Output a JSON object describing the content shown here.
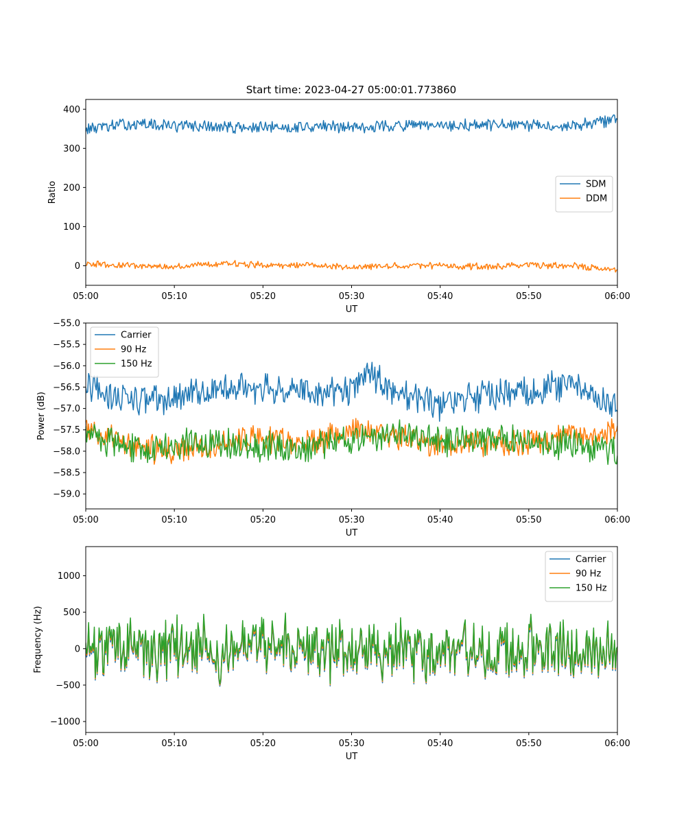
{
  "figure": {
    "title": "Start time: 2023-04-27 05:00:01.773860"
  },
  "colors": {
    "series1": "#1f77b4",
    "series2": "#ff7f0e",
    "series3": "#2ca02c",
    "legend_border": "#cccccc"
  },
  "chart_data": [
    {
      "type": "line",
      "title": "Start time: 2023-04-27 05:00:01.773860",
      "xlabel": "UT",
      "ylabel": "Ratio",
      "xlim": [
        "05:00",
        "06:00"
      ],
      "xticks": [
        "05:00",
        "05:10",
        "05:20",
        "05:30",
        "05:40",
        "05:50",
        "06:00"
      ],
      "ylim": [
        -50,
        425
      ],
      "yticks": [
        0,
        100,
        200,
        300,
        400
      ],
      "grid": false,
      "legend": "center-right",
      "series": [
        {
          "name": "SDM",
          "color": "#1f77b4",
          "x": [
            "05:00",
            "05:05",
            "05:10",
            "05:15",
            "05:20",
            "05:25",
            "05:30",
            "05:35",
            "05:40",
            "05:45",
            "05:50",
            "05:55",
            "06:00"
          ],
          "y": [
            350,
            362,
            358,
            355,
            352,
            356,
            355,
            358,
            356,
            360,
            357,
            358,
            375
          ],
          "noise": 15
        },
        {
          "name": "DDM",
          "color": "#ff7f0e",
          "x": [
            "05:00",
            "05:05",
            "05:10",
            "05:15",
            "05:20",
            "05:25",
            "05:30",
            "05:35",
            "05:40",
            "05:45",
            "05:50",
            "05:55",
            "06:00"
          ],
          "y": [
            5,
            0,
            -2,
            5,
            2,
            1,
            -3,
            0,
            0,
            -2,
            0,
            0,
            -12
          ],
          "noise": 8
        }
      ]
    },
    {
      "type": "line",
      "xlabel": "UT",
      "ylabel": "Power (dB)",
      "xlim": [
        "05:00",
        "06:00"
      ],
      "xticks": [
        "05:00",
        "05:10",
        "05:20",
        "05:30",
        "05:40",
        "05:50",
        "06:00"
      ],
      "ylim": [
        -59.35,
        -55.0
      ],
      "yticks": [
        -55.0,
        -55.5,
        -56.0,
        -56.5,
        -57.0,
        -57.5,
        -58.0,
        -58.5,
        -59.0
      ],
      "yticklabels": [
        "−55.0",
        "−55.5",
        "−56.0",
        "−56.5",
        "−57.0",
        "−57.5",
        "−58.0",
        "−58.5",
        "−59.0"
      ],
      "grid": false,
      "legend": "upper-left",
      "series": [
        {
          "name": "Carrier",
          "color": "#1f77b4",
          "x": [
            "05:00",
            "05:05",
            "05:10",
            "05:15",
            "05:20",
            "05:25",
            "05:30",
            "05:32",
            "05:35",
            "05:40",
            "05:45",
            "05:50",
            "05:55",
            "06:00"
          ],
          "y": [
            -56.5,
            -56.8,
            -56.8,
            -56.5,
            -56.5,
            -56.6,
            -56.6,
            -56.1,
            -56.7,
            -56.9,
            -56.7,
            -56.6,
            -56.4,
            -57.05
          ],
          "noise": 0.35
        },
        {
          "name": "90 Hz",
          "color": "#ff7f0e",
          "x": [
            "05:00",
            "05:05",
            "05:10",
            "05:15",
            "05:20",
            "05:25",
            "05:30",
            "05:35",
            "05:40",
            "05:45",
            "05:50",
            "05:55",
            "06:00"
          ],
          "y": [
            -57.5,
            -57.9,
            -58.0,
            -57.8,
            -57.7,
            -57.8,
            -57.5,
            -57.6,
            -57.9,
            -57.8,
            -57.8,
            -57.6,
            -57.5
          ],
          "noise": 0.3
        },
        {
          "name": "150 Hz",
          "color": "#2ca02c",
          "x": [
            "05:00",
            "05:05",
            "05:10",
            "05:15",
            "05:20",
            "05:25",
            "05:30",
            "05:35",
            "05:40",
            "05:45",
            "05:50",
            "05:55",
            "06:00"
          ],
          "y": [
            -57.6,
            -57.9,
            -57.9,
            -57.8,
            -57.9,
            -57.9,
            -57.7,
            -57.6,
            -57.8,
            -57.7,
            -57.8,
            -57.8,
            -58.0
          ],
          "noise": 0.35
        }
      ]
    },
    {
      "type": "line",
      "xlabel": "UT",
      "ylabel": "Frequency (Hz)",
      "xlim": [
        "05:00",
        "06:00"
      ],
      "xticks": [
        "05:00",
        "05:10",
        "05:20",
        "05:30",
        "05:40",
        "05:50",
        "06:00"
      ],
      "ylim": [
        -1150,
        1400
      ],
      "yticks": [
        -1000,
        -500,
        0,
        500,
        1000
      ],
      "yticklabels": [
        "−1000",
        "−500",
        "0",
        "500",
        "1000"
      ],
      "grid": false,
      "legend": "upper-right",
      "series": [
        {
          "name": "Carrier",
          "color": "#1f77b4",
          "x": [
            "05:00",
            "05:30",
            "06:00"
          ],
          "y": [
            -50,
            -50,
            -50
          ],
          "noise": 420
        },
        {
          "name": "90 Hz",
          "color": "#ff7f0e",
          "x": [
            "05:00",
            "05:30",
            "06:00"
          ],
          "y": [
            -25,
            -25,
            -25
          ],
          "noise": 420
        },
        {
          "name": "150 Hz",
          "color": "#2ca02c",
          "x": [
            "05:00",
            "05:30",
            "06:00"
          ],
          "y": [
            0,
            0,
            0
          ],
          "noise": 420
        }
      ]
    }
  ]
}
